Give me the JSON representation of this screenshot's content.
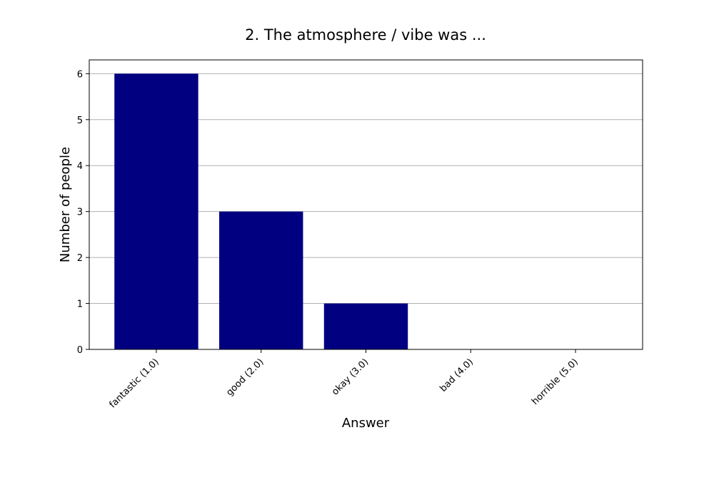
{
  "chart_data": {
    "type": "bar",
    "title": "2. The atmosphere / vibe was ...",
    "xlabel": "Answer",
    "ylabel": "Number of people",
    "categories": [
      "fantastic (1.0)",
      "good (2.0)",
      "okay (3.0)",
      "bad (4.0)",
      "horrible (5.0)"
    ],
    "values": [
      6,
      3,
      1,
      0,
      0
    ],
    "ylim": [
      0,
      6.3
    ],
    "yticks": [
      0,
      1,
      2,
      3,
      4,
      5,
      6
    ],
    "grid": "y-major",
    "legend": "none",
    "bar_color": "#000080"
  }
}
